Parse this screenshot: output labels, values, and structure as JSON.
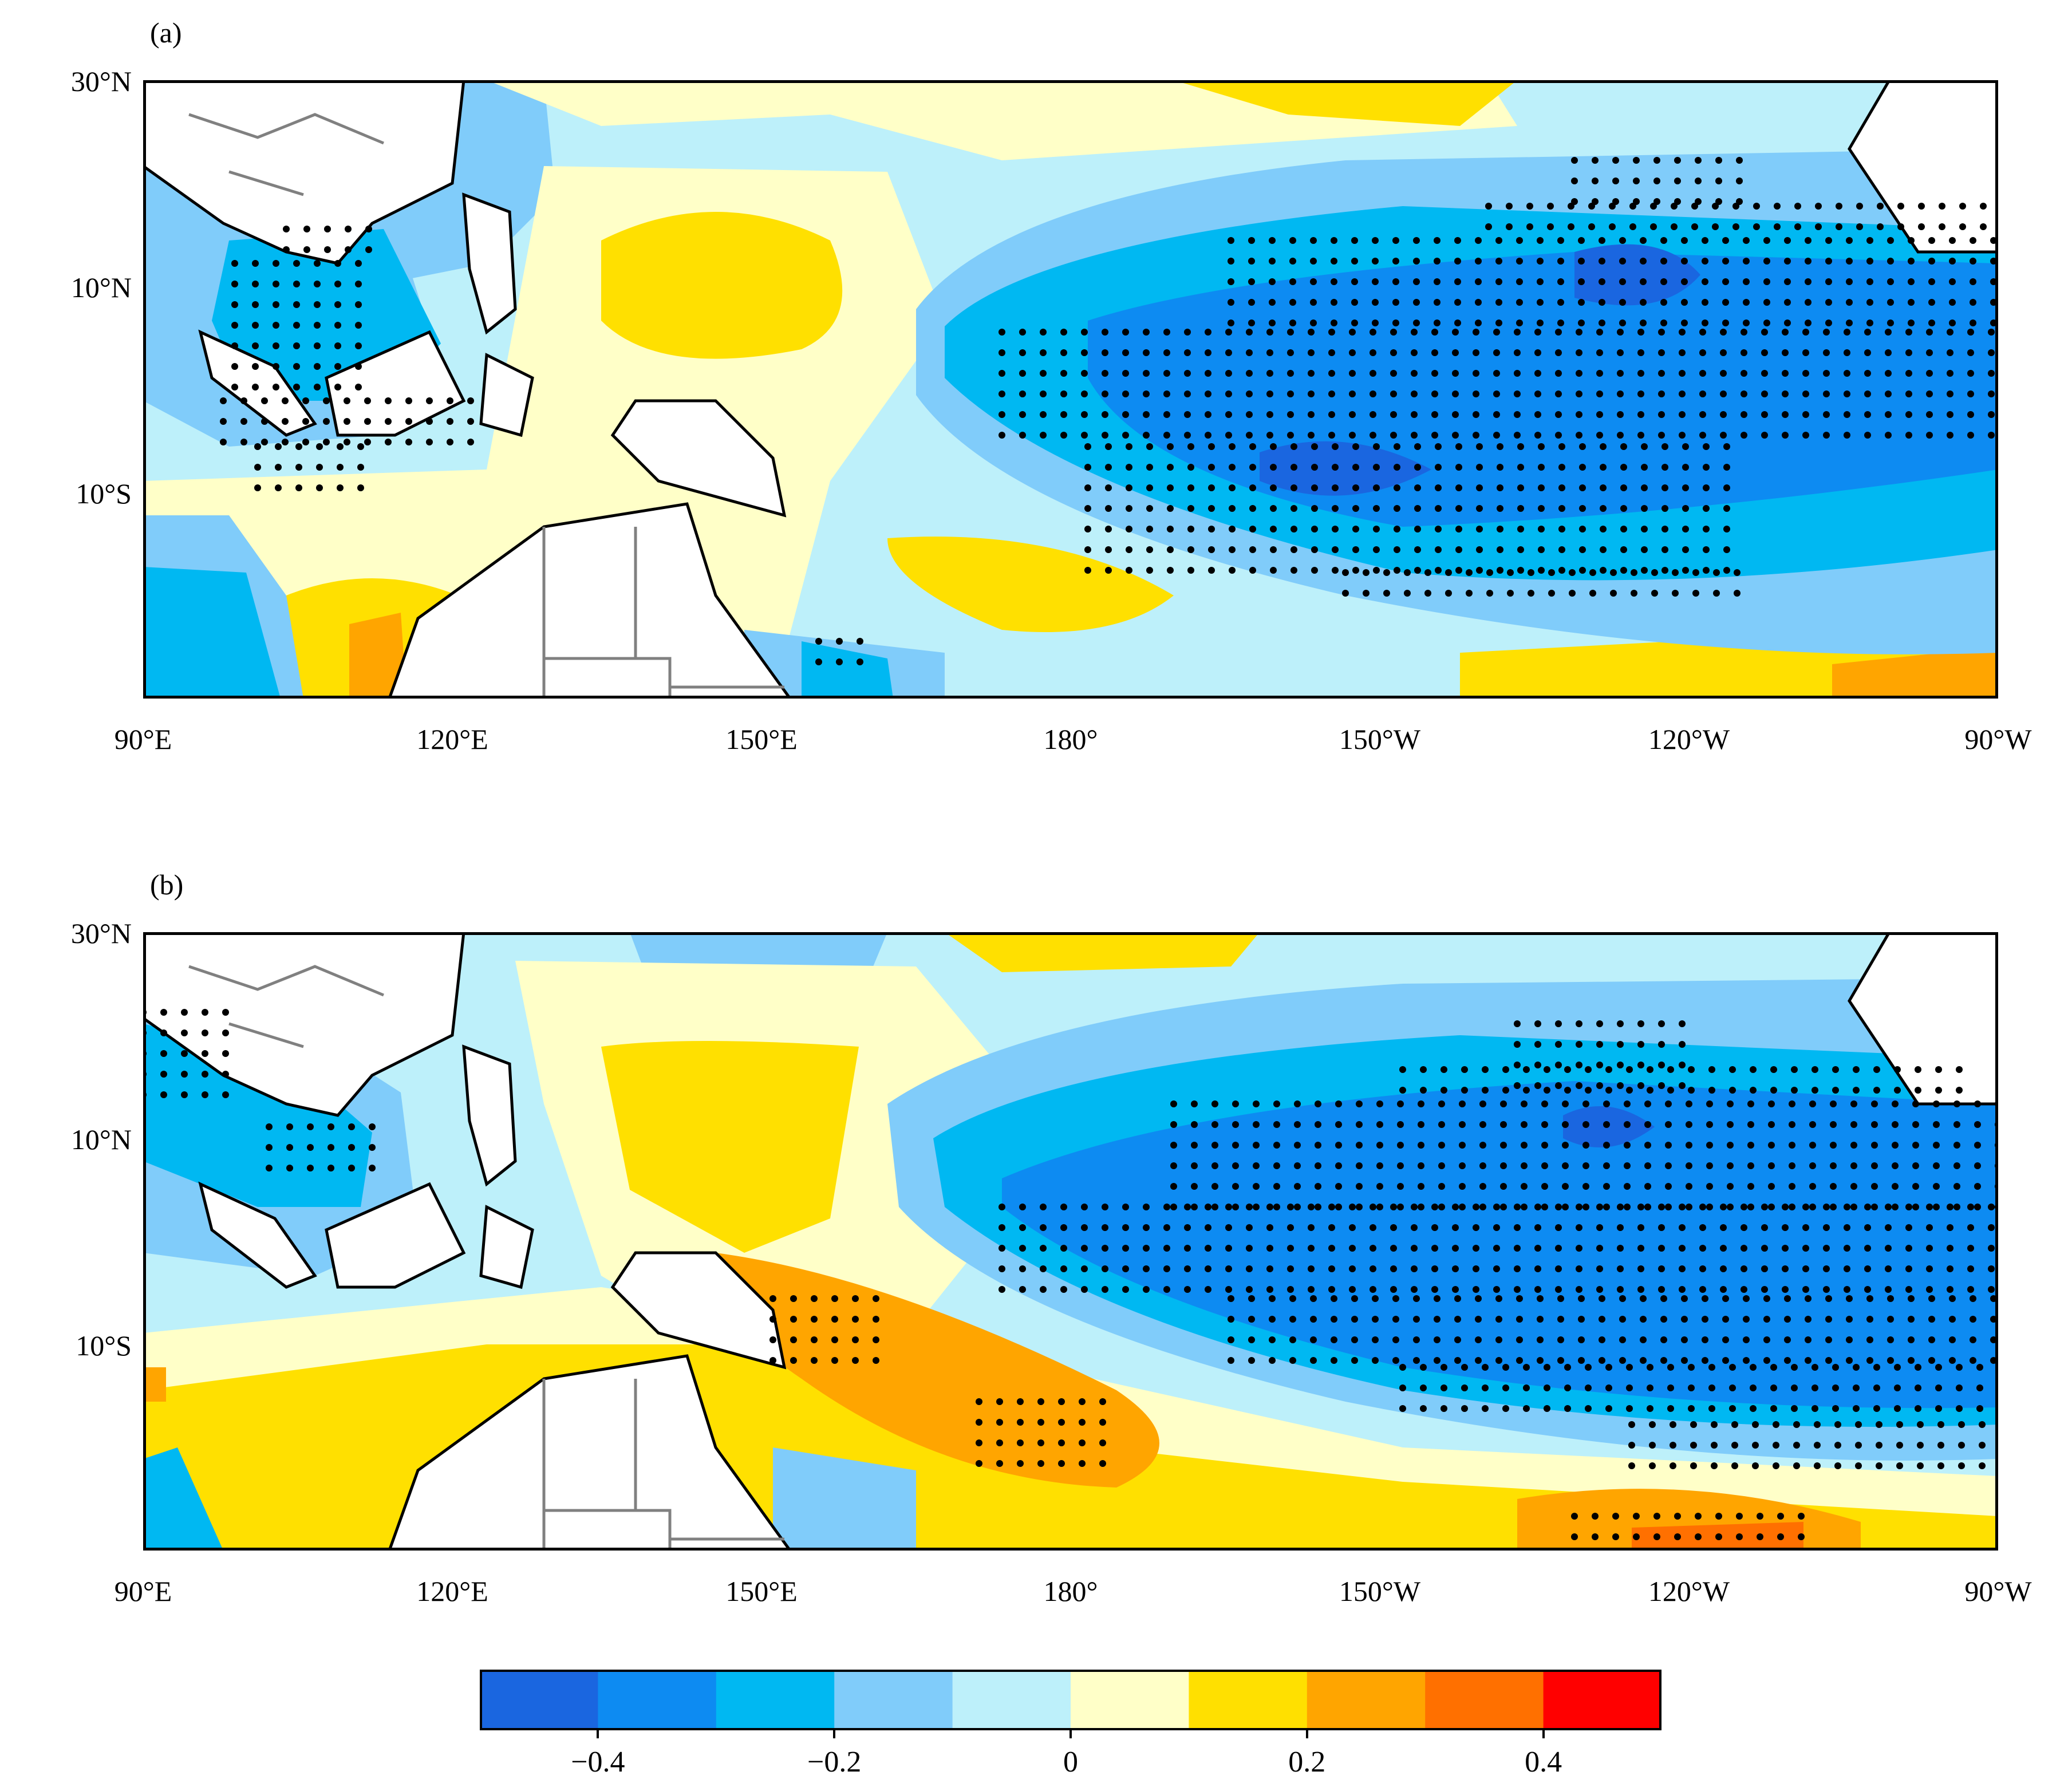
{
  "panels": [
    {
      "label": "(a)"
    },
    {
      "label": "(b)"
    }
  ],
  "axes": {
    "lat_labels": [
      "30°N",
      "10°N",
      "10°S"
    ],
    "lon_labels": [
      "90°E",
      "120°E",
      "150°E",
      "180°",
      "150°W",
      "120°W",
      "90°W"
    ]
  },
  "colorbar": {
    "levels": [
      -0.5,
      -0.4,
      -0.3,
      -0.2,
      -0.1,
      0,
      0.1,
      0.2,
      0.3,
      0.4,
      0.5
    ],
    "colors": [
      "#1a66e0",
      "#0d8bf2",
      "#00b8f2",
      "#80ccfa",
      "#bdf0fa",
      "#ffffc8",
      "#ffe000",
      "#ffa500",
      "#ff7000",
      "#ff0000"
    ],
    "tick_labels": [
      "−0.4",
      "−0.2",
      "0",
      "0.2",
      "0.4"
    ]
  },
  "colors": {
    "land": "#ffffff",
    "coast": "#000000",
    "borders": "#808080",
    "stipple": "#000000"
  }
}
